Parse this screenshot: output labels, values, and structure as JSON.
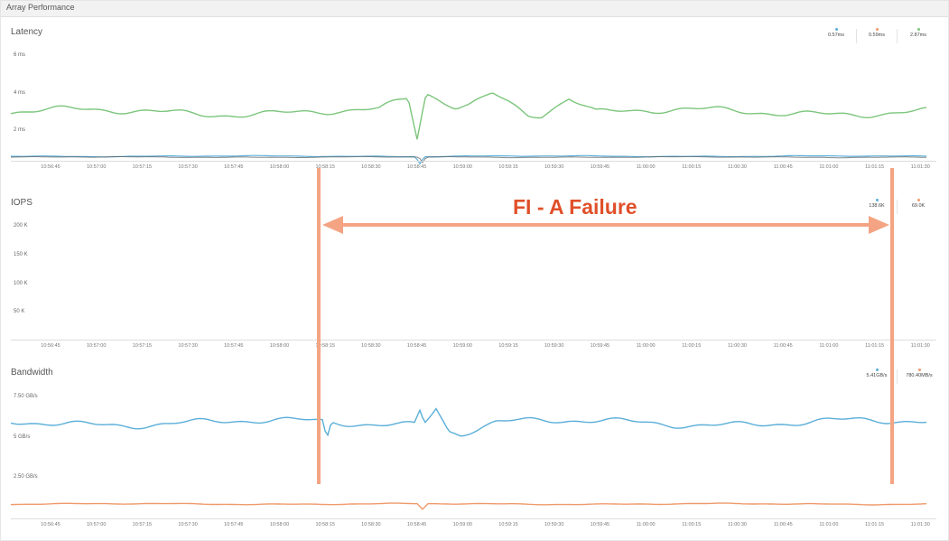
{
  "header": {
    "title": "Array Performance"
  },
  "time_ticks": [
    "10:56:45",
    "10:57:00",
    "10:57:15",
    "10:57:30",
    "10:57:45",
    "10:58:00",
    "10:58:15",
    "10:58:30",
    "10:58:45",
    "10:59:00",
    "10:59:15",
    "10:59:30",
    "10:59:45",
    "11:00:00",
    "11:00:15",
    "11:00:30",
    "11:00:45",
    "11:01:00",
    "11:01:15",
    "11:01:30"
  ],
  "panels": {
    "latency": {
      "title": "Latency",
      "y_labels": [
        "6 ms",
        "4 ms",
        "2 ms"
      ],
      "legend": [
        {
          "letter": "R",
          "value": "0.57ms",
          "color": "#5aaed8"
        },
        {
          "letter": "W",
          "value": "0.59ms",
          "color": "#ef9a6c"
        },
        {
          "letter": "O",
          "value": "2.87ms",
          "color": "#7cc57c"
        }
      ]
    },
    "iops": {
      "title": "IOPS",
      "y_labels": [
        "200 K",
        "150 K",
        "100 K",
        "50 K"
      ],
      "legend": [
        {
          "letter": "R",
          "value": "138.6K",
          "color": "#5aaed8"
        },
        {
          "letter": "W",
          "value": "69.0K",
          "color": "#ef9a6c"
        }
      ]
    },
    "bandwidth": {
      "title": "Bandwidth",
      "y_labels": [
        "7.50 GB/s",
        "5 GB/s",
        "2.50 GB/s"
      ],
      "legend": [
        {
          "letter": "R",
          "value": "5.41GB/s",
          "color": "#5aaed8"
        },
        {
          "letter": "W",
          "value": "780.40MB/s",
          "color": "#ef9a6c"
        }
      ]
    }
  },
  "annotation": {
    "text": "FI - A Failure",
    "color": "#e0502a",
    "line_color": "#f4a483"
  },
  "colors": {
    "read": "#5aaed8",
    "write": "#ef9a6c",
    "other": "#7cc57c"
  }
}
